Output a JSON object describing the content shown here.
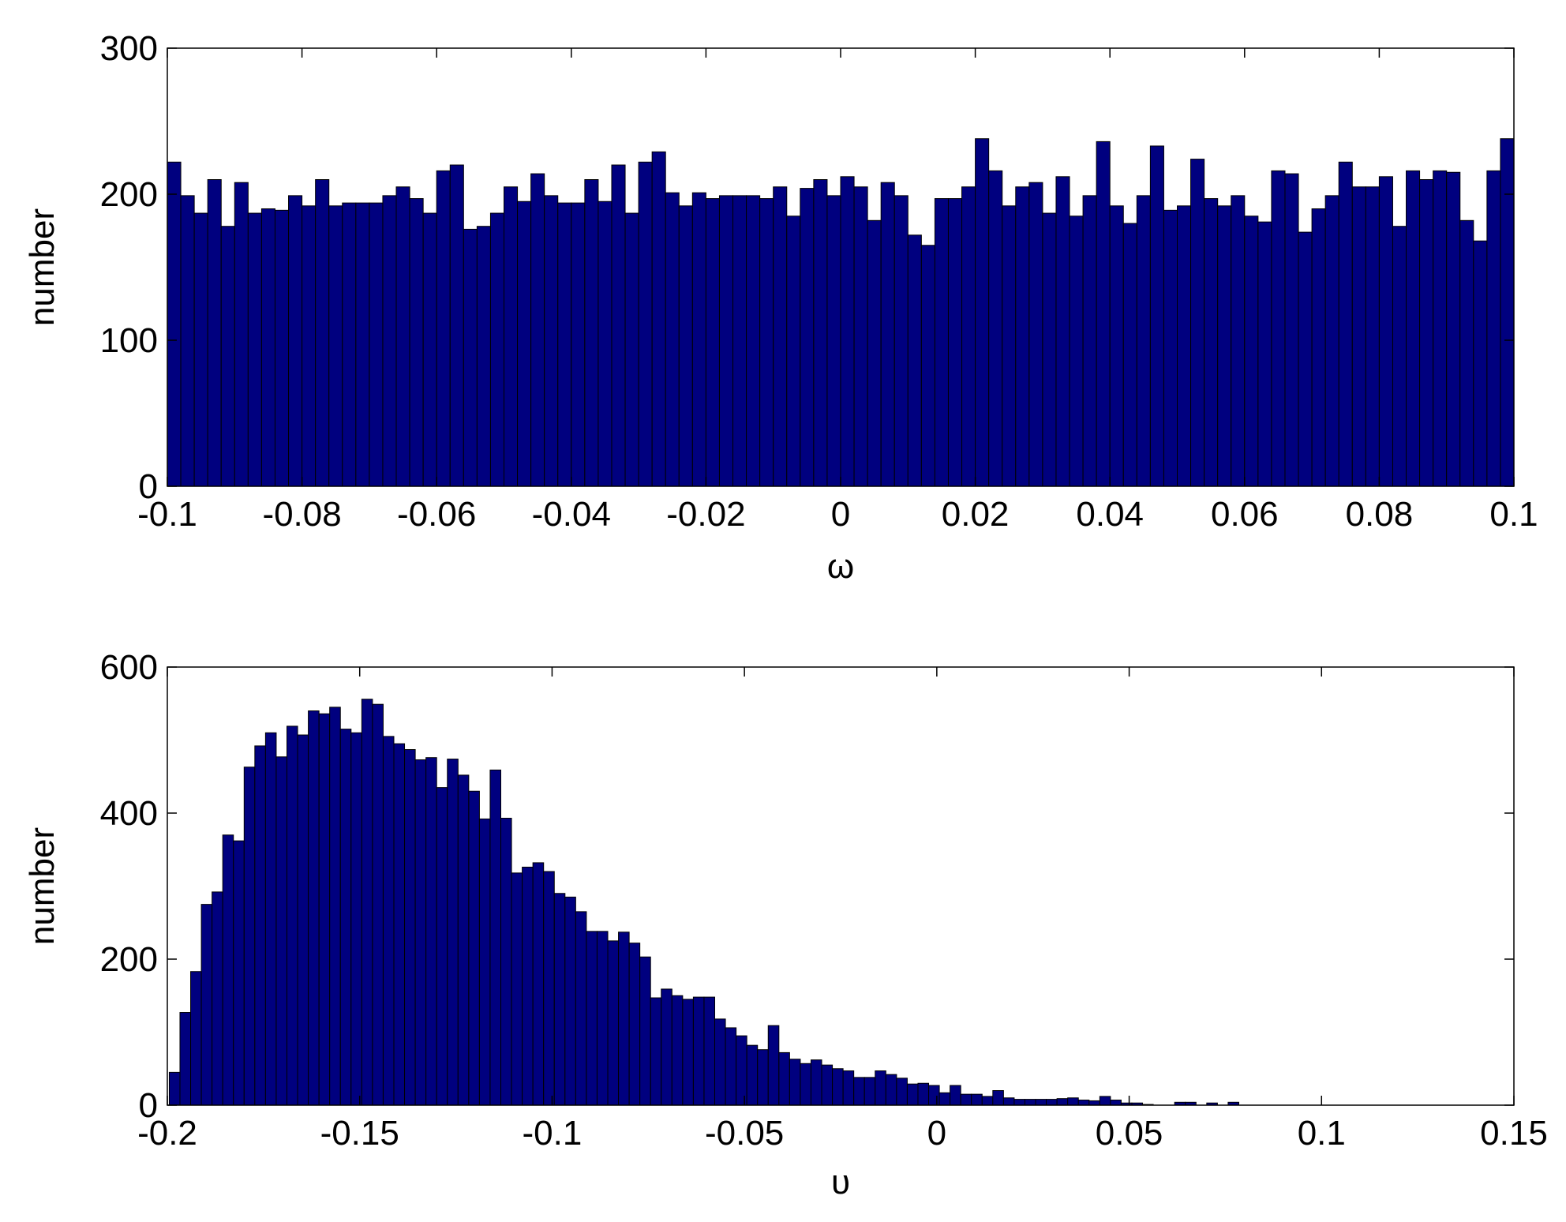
{
  "chart_data": [
    {
      "type": "histogram",
      "xlabel": "ω",
      "ylabel": "number",
      "color": "#00007f",
      "bins": [
        -0.1,
        -0.098,
        -0.096,
        -0.094,
        -0.092,
        -0.09,
        -0.088,
        -0.086,
        -0.084,
        -0.082,
        -0.08,
        -0.078,
        -0.076,
        -0.074,
        -0.072,
        -0.07,
        -0.068,
        -0.066,
        -0.064,
        -0.062,
        -0.06,
        -0.058,
        -0.056,
        -0.054,
        -0.052,
        -0.05,
        -0.048,
        -0.046,
        -0.044,
        -0.042,
        -0.04,
        -0.038,
        -0.036,
        -0.034,
        -0.032,
        -0.03,
        -0.028,
        -0.026,
        -0.024,
        -0.022,
        -0.02,
        -0.018,
        -0.016,
        -0.014,
        -0.012,
        -0.01,
        -0.008,
        -0.006,
        -0.004,
        -0.002,
        0,
        0.002,
        0.004,
        0.006,
        0.008,
        0.01,
        0.012,
        0.014,
        0.016,
        0.018,
        0.02,
        0.022,
        0.024,
        0.026,
        0.028,
        0.03,
        0.032,
        0.034,
        0.036,
        0.038,
        0.04,
        0.042,
        0.044,
        0.046,
        0.048,
        0.05,
        0.052,
        0.054,
        0.056,
        0.058,
        0.06,
        0.062,
        0.064,
        0.066,
        0.068,
        0.07,
        0.072,
        0.074,
        0.076,
        0.078,
        0.08,
        0.082,
        0.084,
        0.086,
        0.088,
        0.09,
        0.092,
        0.094,
        0.096,
        0.098,
        0.1
      ],
      "counts": [
        222,
        199,
        187,
        210,
        178,
        208,
        187,
        190,
        189,
        199,
        192,
        210,
        192,
        194,
        194,
        194,
        199,
        205,
        197,
        187,
        216,
        220,
        176,
        178,
        187,
        205,
        195,
        214,
        199,
        194,
        194,
        210,
        195,
        220,
        187,
        222,
        229,
        201,
        192,
        201,
        197,
        199,
        199,
        199,
        197,
        205,
        185,
        204,
        210,
        199,
        212,
        205,
        182,
        208,
        199,
        172,
        165,
        197,
        197,
        205,
        238,
        216,
        192,
        205,
        208,
        187,
        212,
        185,
        199,
        236,
        192,
        180,
        199,
        233,
        189,
        192,
        224,
        197,
        192,
        199,
        185,
        181,
        216,
        214,
        174,
        190,
        199,
        222,
        205,
        205,
        212,
        178,
        216,
        210,
        216,
        215,
        182,
        168,
        216,
        238
      ],
      "xlim": [
        -0.1,
        0.1
      ],
      "xticks": [
        -0.1,
        -0.08,
        -0.06,
        -0.04,
        -0.02,
        0,
        0.02,
        0.04,
        0.06,
        0.08,
        0.1
      ],
      "ylim": [
        0,
        300
      ],
      "yticks": [
        0,
        100,
        200,
        300
      ]
    },
    {
      "type": "histogram",
      "xlabel": "υ",
      "ylabel": "number",
      "color": "#00007f",
      "bins": [
        -0.1995,
        -0.19672,
        -0.19394,
        -0.19116,
        -0.18838,
        -0.1856,
        -0.18282,
        -0.18004,
        -0.17726,
        -0.17448,
        -0.1717,
        -0.16892,
        -0.16614,
        -0.16336,
        -0.16058,
        -0.1578,
        -0.15502,
        -0.15224,
        -0.14946,
        -0.14668,
        -0.1439,
        -0.14112,
        -0.13834,
        -0.13556,
        -0.13278,
        -0.13,
        -0.12722,
        -0.12444,
        -0.12166,
        -0.11888,
        -0.1161,
        -0.11332,
        -0.11054,
        -0.10776,
        -0.10498,
        -0.1022,
        -0.09942,
        -0.09664,
        -0.09386,
        -0.09108,
        -0.0883,
        -0.08552,
        -0.08274,
        -0.07996,
        -0.07718,
        -0.0744,
        -0.07162,
        -0.06884,
        -0.06606,
        -0.06328,
        -0.0605,
        -0.05772,
        -0.05494,
        -0.05216,
        -0.04938,
        -0.0466,
        -0.04382,
        -0.04104,
        -0.03826,
        -0.03548,
        -0.0327,
        -0.02992,
        -0.02714,
        -0.02436,
        -0.02158,
        -0.0188,
        -0.01602,
        -0.01324,
        -0.01046,
        -0.00768,
        -0.0049,
        -0.00212,
        0.00066,
        0.00344,
        0.00622,
        0.009,
        0.01178,
        0.01456,
        0.01734,
        0.02012,
        0.0229,
        0.02568,
        0.02846,
        0.03124,
        0.03402,
        0.0368,
        0.03958,
        0.04236,
        0.04514,
        0.04792,
        0.0507,
        0.05348,
        0.05626,
        0.05904,
        0.06182,
        0.0646,
        0.06738,
        0.07016,
        0.07294,
        0.07572,
        0.0785
      ],
      "counts": [
        45,
        127,
        183,
        275,
        292,
        370,
        362,
        463,
        492,
        510,
        477,
        519,
        507,
        540,
        536,
        545,
        515,
        510,
        556,
        549,
        505,
        495,
        487,
        473,
        476,
        435,
        474,
        452,
        430,
        392,
        459,
        393,
        318,
        326,
        332,
        320,
        290,
        285,
        265,
        238,
        238,
        225,
        237,
        222,
        203,
        147,
        159,
        150,
        145,
        148,
        148,
        118,
        106,
        95,
        82,
        76,
        109,
        72,
        63,
        57,
        62,
        55,
        50,
        47,
        38,
        38,
        47,
        42,
        37,
        29,
        30,
        27,
        17,
        27,
        15,
        15,
        12,
        20,
        10,
        8,
        8,
        8,
        8,
        9,
        10,
        7,
        6,
        12,
        7,
        3,
        3,
        1,
        0,
        0,
        4,
        4,
        0,
        3,
        0,
        4
      ],
      "xlim": [
        -0.2,
        0.15
      ],
      "xticks": [
        -0.2,
        -0.15,
        -0.1,
        -0.05,
        0,
        0.05,
        0.1,
        0.15
      ],
      "ylim": [
        0,
        600
      ],
      "yticks": [
        0,
        200,
        400,
        600
      ]
    }
  ]
}
